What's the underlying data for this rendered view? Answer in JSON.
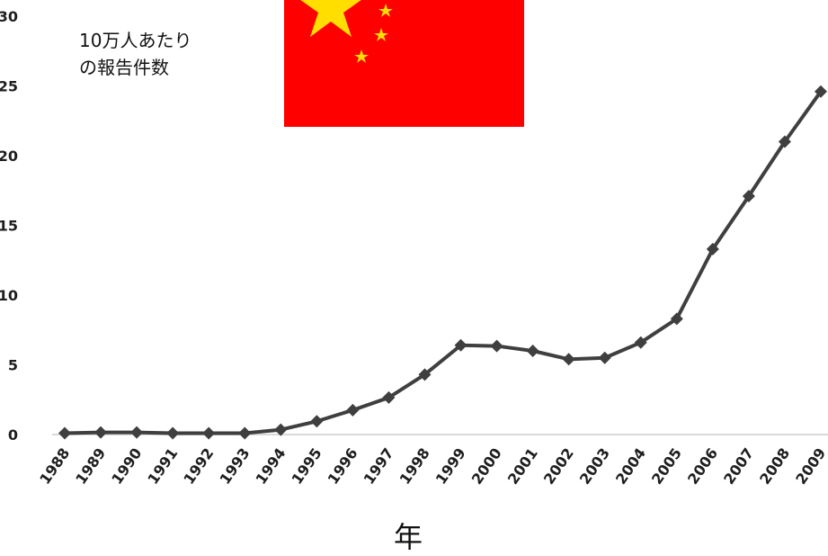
{
  "chart_data": {
    "type": "line",
    "title": "",
    "ylabel_lines": [
      "10万人あたり",
      "の報告件数"
    ],
    "xlabel": "年",
    "ylim": [
      0,
      30
    ],
    "yticks": [
      0,
      5,
      10,
      15,
      20,
      25,
      30
    ],
    "grid": false,
    "x": [
      "1988",
      "1989",
      "1990",
      "1991",
      "1992",
      "1993",
      "1994",
      "1995",
      "1996",
      "1997",
      "1998",
      "1999",
      "2000",
      "2001",
      "2002",
      "2003",
      "2004",
      "2005",
      "2006",
      "2007",
      "2008",
      "2009"
    ],
    "series": [
      {
        "values": [
          0.1,
          0.15,
          0.15,
          0.1,
          0.1,
          0.1,
          0.35,
          0.95,
          1.75,
          2.65,
          4.3,
          6.4,
          6.35,
          6.0,
          5.4,
          5.5,
          6.6,
          8.3,
          13.3,
          17.1,
          21.0,
          24.6
        ],
        "color": "#3f3f3f"
      }
    ],
    "decoration": {
      "flag_icon": "china-flag-icon",
      "flag_color": "#ff0000",
      "star_color": "#ffde00"
    }
  }
}
